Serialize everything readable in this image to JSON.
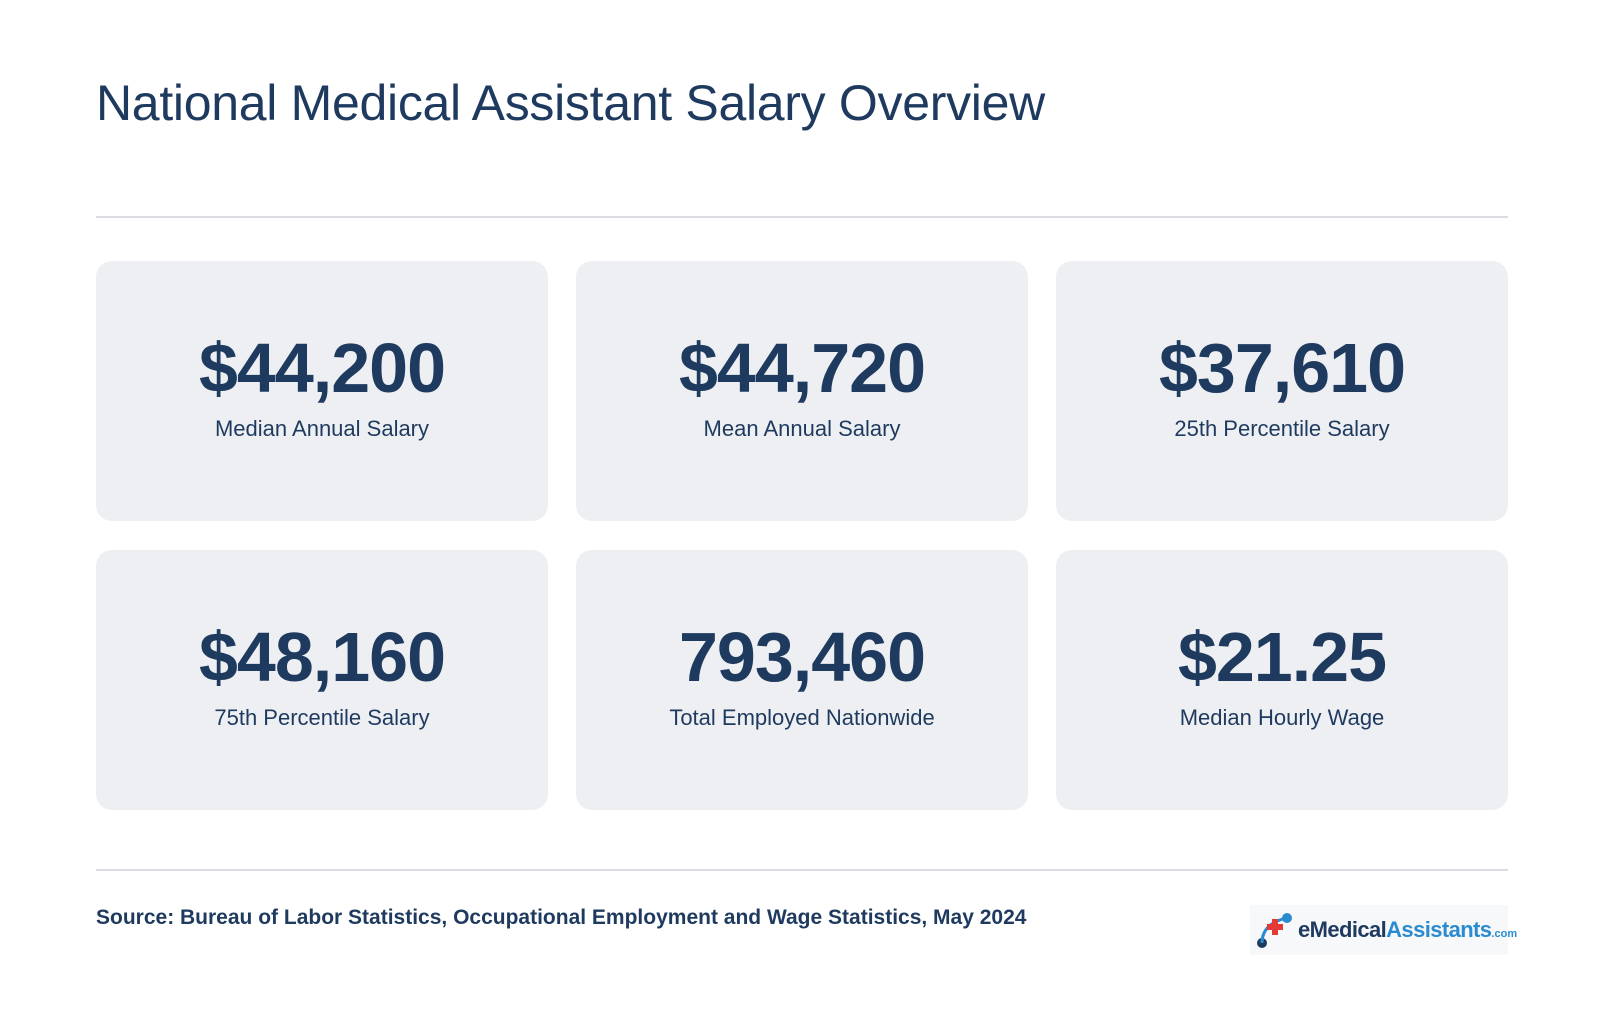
{
  "title": "National Medical Assistant Salary Overview",
  "stats": [
    {
      "value": "$44,200",
      "label": "Median Annual Salary"
    },
    {
      "value": "$44,720",
      "label": "Mean Annual Salary"
    },
    {
      "value": "$37,610",
      "label": "25th Percentile Salary"
    },
    {
      "value": "$48,160",
      "label": "75th Percentile Salary"
    },
    {
      "value": "793,460",
      "label": "Total Employed Nationwide"
    },
    {
      "value": "$21.25",
      "label": "Median Hourly Wage"
    }
  ],
  "source": "Source: Bureau of Labor Statistics, Occupational Employment and Wage Statistics, May 2024",
  "logo": {
    "e": "e",
    "medical": "Medical",
    "assistants": "Assistants",
    "com": ".com",
    "icon": "medical-cross-icon"
  },
  "colors": {
    "text": "#1f3a5f",
    "card_bg": "#edeff2",
    "divider": "#d9dce1",
    "logo_blue": "#2a8bd0",
    "logo_red": "#e53935"
  }
}
